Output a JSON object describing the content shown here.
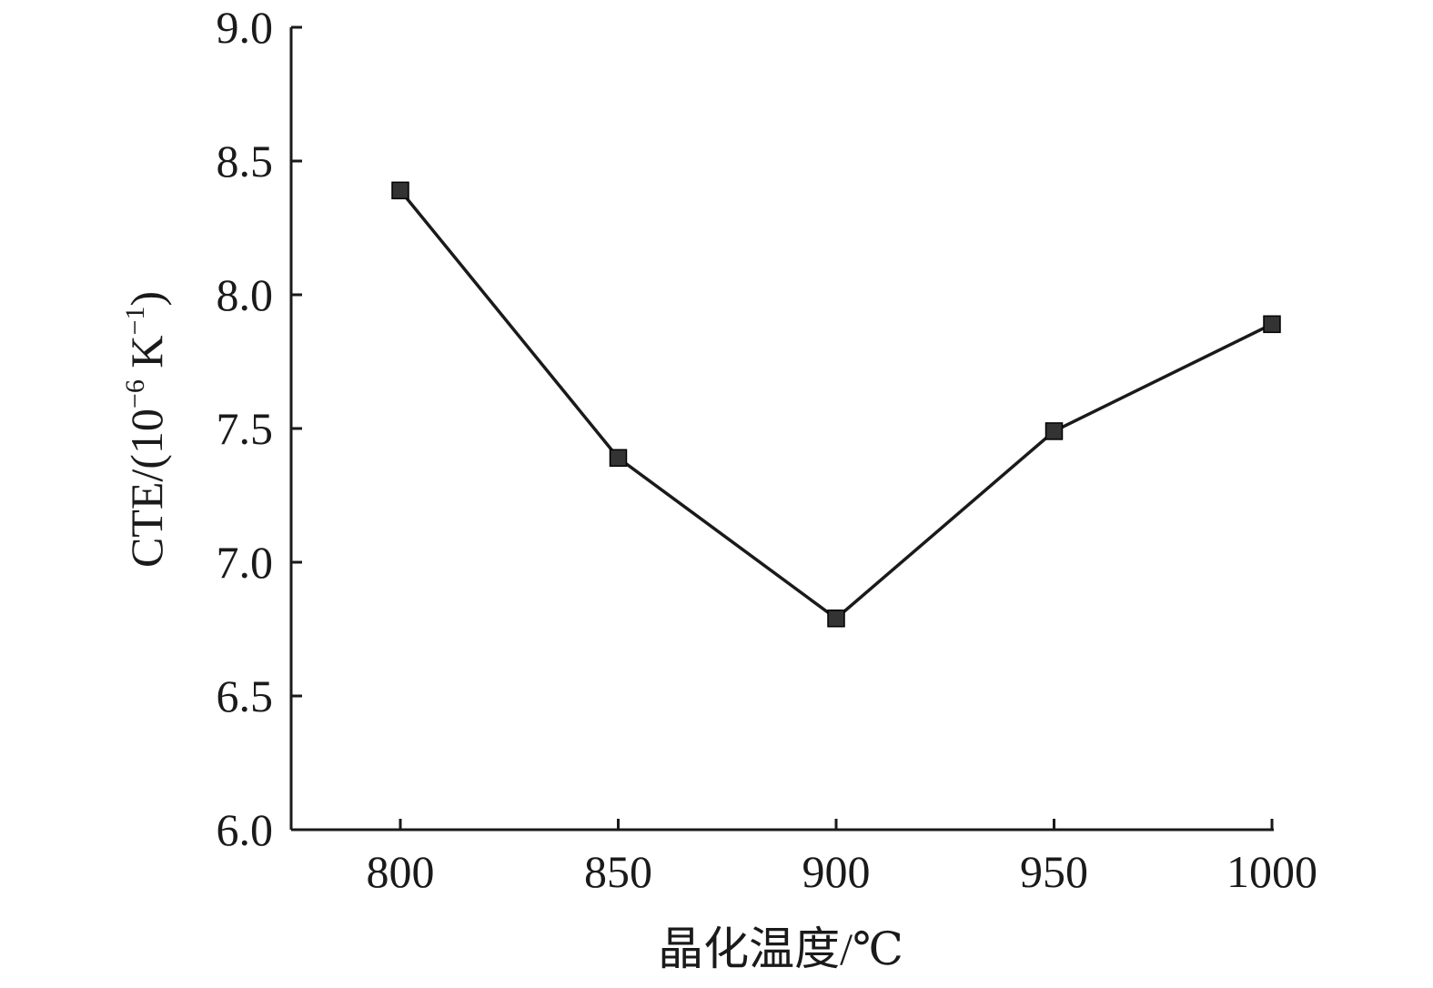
{
  "chart_data": {
    "type": "line",
    "title": "",
    "xlabel": "晶化温度/℃",
    "ylabel_parts": {
      "main": "CTE/(10",
      "exp1": "−6",
      "mid": " K",
      "exp2": "−1",
      "end": ")"
    },
    "x": [
      800,
      850,
      900,
      950,
      1000
    ],
    "series": [
      {
        "values": [
          8.39,
          7.39,
          6.79,
          7.49,
          7.89
        ]
      }
    ],
    "xlim": [
      775,
      1000
    ],
    "ylim": [
      6.0,
      9.0
    ],
    "xticks": [
      800,
      850,
      900,
      950,
      1000
    ],
    "xtick_labels": [
      "800",
      "850",
      "900",
      "950",
      "1000"
    ],
    "yticks": [
      6.0,
      6.5,
      7.0,
      7.5,
      8.0,
      8.5,
      9.0
    ],
    "ytick_labels": [
      "6.0",
      "6.5",
      "7.0",
      "7.5",
      "8.0",
      "8.5",
      "9.0"
    ],
    "grid": false,
    "legend": "none",
    "colors": {
      "line": "#1a1a1a",
      "marker": "#333333",
      "axis": "#1a1a1a"
    }
  }
}
